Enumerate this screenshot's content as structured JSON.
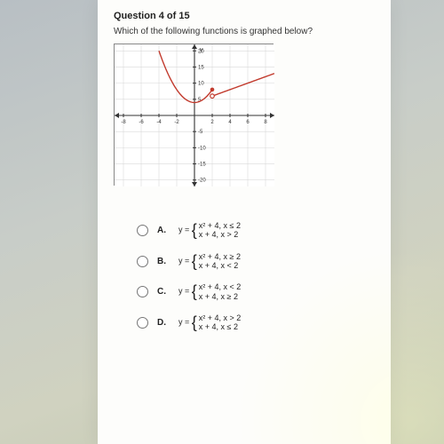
{
  "question": {
    "counter": "Question 4 of 15",
    "prompt": "Which of the following functions is graphed below?"
  },
  "graph": {
    "type": "piecewise-plot",
    "xlim": [
      -9,
      9
    ],
    "ylim": [
      -22,
      22
    ],
    "xticks": [
      -8,
      -6,
      -4,
      -2,
      2,
      4,
      6,
      8
    ],
    "yticks": [
      -20,
      -15,
      -10,
      -5,
      5,
      10,
      15,
      20
    ],
    "grid_color": "#d9d9d9",
    "axis_color": "#333333",
    "background_color": "#ffffff",
    "tick_fontsize": 6,
    "curves": [
      {
        "kind": "parabola",
        "expr": "x^2+4",
        "x_from": -4.0,
        "x_to": 2.0,
        "color": "#c23b2e",
        "end_marker_right": "closed",
        "linewidth": 1.4
      },
      {
        "kind": "line",
        "expr": "x+4",
        "x_from": 2.0,
        "x_to": 9.0,
        "color": "#c23b2e",
        "start_marker": "open",
        "linewidth": 1.4
      }
    ],
    "marker_radius": 2.3,
    "axis_label_y": "y"
  },
  "options": [
    {
      "letter": "A.",
      "lead": "y =",
      "piece1": "x² + 4, x ≤ 2",
      "piece2": "x + 4, x > 2"
    },
    {
      "letter": "B.",
      "lead": "y =",
      "piece1": "x² + 4, x ≥ 2",
      "piece2": "x + 4, x < 2"
    },
    {
      "letter": "C.",
      "lead": "y =",
      "piece1": "x² + 4, x < 2",
      "piece2": "x + 4, x ≥ 2"
    },
    {
      "letter": "D.",
      "lead": "y =",
      "piece1": "x² + 4, x > 2",
      "piece2": "x + 4, x ≤ 2"
    }
  ]
}
